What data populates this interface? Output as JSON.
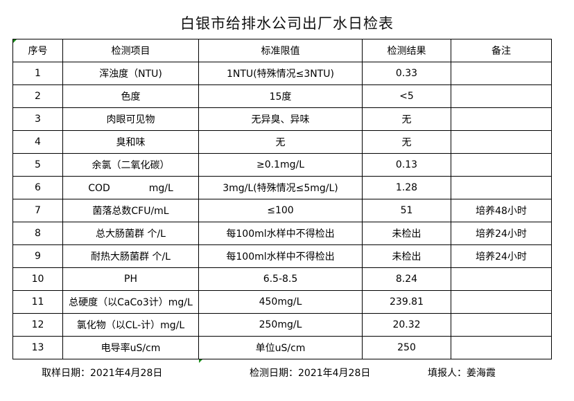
{
  "title": "白银市给排水公司出厂水日检表",
  "table": {
    "headers": [
      "序号",
      "检测项目",
      "标准限值",
      "检测结果",
      "备注"
    ],
    "rows": [
      [
        "1",
        "浑浊度（NTU)",
        "1NTU(特殊情况≤3NTU)",
        "0.33",
        ""
      ],
      [
        "2",
        "色度",
        "15度",
        "<5",
        ""
      ],
      [
        "3",
        "肉眼可见物",
        "无异臭、异味",
        "无",
        ""
      ],
      [
        "4",
        "臭和味",
        "无",
        "无",
        ""
      ],
      [
        "5",
        "余氯（二氧化碳）",
        "≥0.1mg/L",
        "0.13",
        ""
      ],
      [
        "6",
        "COD　　　　mg/L",
        "3mg/L(特殊情况≤5mg/L)",
        "1.28",
        ""
      ],
      [
        "7",
        "菌落总数CFU/mL",
        "≤100",
        "51",
        "培养48小时"
      ],
      [
        "8",
        "总大肠菌群 个/L",
        "每100ml水样中不得检出",
        "未检出",
        "培养24小时"
      ],
      [
        "9",
        "耐热大肠菌群 个/L",
        "每100ml水样中不得检出",
        "未检出",
        "培养24小时"
      ],
      [
        "10",
        "PH",
        "6.5-8.5",
        "8.24",
        ""
      ],
      [
        "11",
        "总硬度（以CaCo3计）mg/L",
        "450mg/L",
        "239.81",
        ""
      ],
      [
        "12",
        "氯化物（以CL-计）mg/L",
        "250mg/L",
        "20.32",
        ""
      ],
      [
        "13",
        "电导率uS/cm",
        "单位uS/cm",
        "250",
        ""
      ]
    ]
  },
  "footer": {
    "sampling_date": "取样日期：2021年4月28日",
    "test_date": "检测日期：2021年4月28日",
    "reporter": "填报人：姜海霞"
  }
}
